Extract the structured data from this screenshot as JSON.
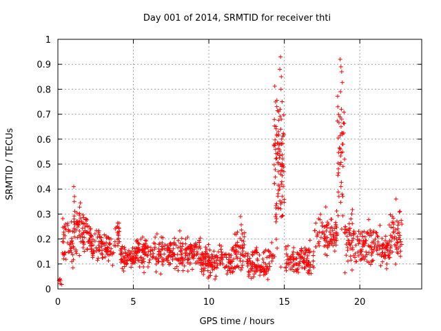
{
  "chart_data": {
    "type": "scatter",
    "title": "Day 001 of 2014, SRMTID for receiver thti",
    "xlabel": "GPS time / hours",
    "ylabel": "SRMTID / TECUs",
    "xlim": [
      0,
      24.1
    ],
    "ylim": [
      0,
      1
    ],
    "xticks": [
      0,
      5,
      10,
      15,
      20
    ],
    "xtick_labels": [
      "0",
      "5",
      "10",
      "15",
      "20"
    ],
    "yticks": [
      0,
      0.1,
      0.2,
      0.3,
      0.4,
      0.5,
      0.6,
      0.7,
      0.8,
      0.9,
      1
    ],
    "ytick_labels": [
      "0",
      "0.1",
      "0.2",
      "0.3",
      "0.4",
      "0.5",
      "0.6",
      "0.7",
      "0.8",
      "0.9",
      "1"
    ],
    "grid": true,
    "marker": "+",
    "color": "#ff0000",
    "series": [
      {
        "name": "SRMTID",
        "segments": [
          {
            "x_start": 0.0,
            "x_end": 0.3,
            "y_min": 0.0,
            "y_max": 0.05,
            "points": 6
          },
          {
            "x_start": 0.3,
            "x_end": 1.0,
            "y_min": 0.07,
            "y_max": 0.33,
            "points": 45
          },
          {
            "x_start": 1.0,
            "x_end": 1.5,
            "y_min": 0.08,
            "y_max": 0.41,
            "points": 40
          },
          {
            "x_start": 1.5,
            "x_end": 2.2,
            "y_min": 0.12,
            "y_max": 0.34,
            "points": 50
          },
          {
            "x_start": 2.2,
            "x_end": 3.8,
            "y_min": 0.08,
            "y_max": 0.25,
            "points": 90
          },
          {
            "x_start": 3.8,
            "x_end": 4.1,
            "y_min": 0.12,
            "y_max": 0.32,
            "points": 18
          },
          {
            "x_start": 4.1,
            "x_end": 5.0,
            "y_min": 0.05,
            "y_max": 0.2,
            "points": 55
          },
          {
            "x_start": 5.0,
            "x_end": 7.5,
            "y_min": 0.05,
            "y_max": 0.24,
            "points": 150
          },
          {
            "x_start": 7.5,
            "x_end": 9.5,
            "y_min": 0.05,
            "y_max": 0.24,
            "points": 120
          },
          {
            "x_start": 9.5,
            "x_end": 11.5,
            "y_min": 0.02,
            "y_max": 0.2,
            "points": 120
          },
          {
            "x_start": 11.5,
            "x_end": 12.5,
            "y_min": 0.02,
            "y_max": 0.29,
            "points": 60
          },
          {
            "x_start": 12.5,
            "x_end": 14.3,
            "y_min": 0.01,
            "y_max": 0.2,
            "points": 100
          },
          {
            "x_start": 14.3,
            "x_end": 15.0,
            "y_min": 0.05,
            "y_max": 0.93,
            "points": 90
          },
          {
            "x_start": 15.0,
            "x_end": 17.0,
            "y_min": 0.02,
            "y_max": 0.2,
            "points": 110
          },
          {
            "x_start": 17.0,
            "x_end": 18.5,
            "y_min": 0.1,
            "y_max": 0.35,
            "points": 80
          },
          {
            "x_start": 18.5,
            "x_end": 19.0,
            "y_min": 0.1,
            "y_max": 0.92,
            "points": 40
          },
          {
            "x_start": 19.0,
            "x_end": 20.0,
            "y_min": 0.05,
            "y_max": 0.35,
            "points": 60
          },
          {
            "x_start": 20.0,
            "x_end": 21.0,
            "y_min": 0.05,
            "y_max": 0.3,
            "points": 60
          },
          {
            "x_start": 21.0,
            "x_end": 22.0,
            "y_min": 0.05,
            "y_max": 0.28,
            "points": 60
          },
          {
            "x_start": 22.0,
            "x_end": 22.8,
            "y_min": 0.08,
            "y_max": 0.36,
            "points": 50
          }
        ],
        "spikes": [
          {
            "x": 14.75,
            "y": 0.93
          },
          {
            "x": 14.7,
            "y": 0.88
          },
          {
            "x": 14.8,
            "y": 0.85
          },
          {
            "x": 14.78,
            "y": 0.8
          },
          {
            "x": 14.85,
            "y": 0.75
          },
          {
            "x": 14.72,
            "y": 0.72
          },
          {
            "x": 14.8,
            "y": 0.68
          },
          {
            "x": 14.76,
            "y": 0.64
          },
          {
            "x": 14.82,
            "y": 0.6
          },
          {
            "x": 14.7,
            "y": 0.55
          },
          {
            "x": 14.85,
            "y": 0.5
          },
          {
            "x": 14.75,
            "y": 0.46
          },
          {
            "x": 14.6,
            "y": 0.47
          },
          {
            "x": 14.8,
            "y": 0.42
          },
          {
            "x": 14.68,
            "y": 0.4
          },
          {
            "x": 18.7,
            "y": 0.92
          },
          {
            "x": 18.75,
            "y": 0.89
          },
          {
            "x": 18.8,
            "y": 0.87
          },
          {
            "x": 18.72,
            "y": 0.79
          },
          {
            "x": 18.78,
            "y": 0.72
          },
          {
            "x": 18.8,
            "y": 0.68
          },
          {
            "x": 18.76,
            "y": 0.65
          },
          {
            "x": 18.7,
            "y": 0.56
          },
          {
            "x": 18.75,
            "y": 0.41
          },
          {
            "x": 18.82,
            "y": 0.38
          },
          {
            "x": 1.05,
            "y": 0.41
          },
          {
            "x": 1.1,
            "y": 0.37
          },
          {
            "x": 12.1,
            "y": 0.29
          },
          {
            "x": 22.4,
            "y": 0.36
          }
        ]
      }
    ]
  }
}
